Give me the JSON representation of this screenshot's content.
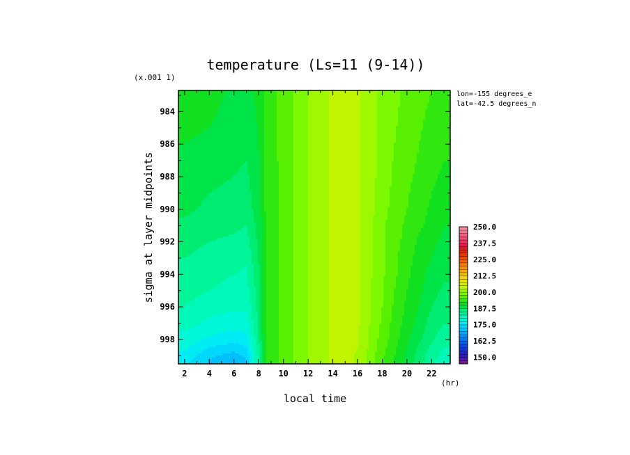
{
  "chart_data": {
    "type": "heatmap",
    "title": "temperature (Ls=11 (9-14))",
    "xlabel": "local time",
    "x_unit": "(hr)",
    "ylabel": "sigma at layer midpoints",
    "y_scale_note": "(x.001 1)",
    "annotations": [
      "lon=-155 degrees_e",
      "lat=-42.5 degrees_n"
    ],
    "xlim": [
      1.5,
      23.5
    ],
    "ylim": [
      999.5,
      982.7
    ],
    "x_ticks": [
      2,
      4,
      6,
      8,
      10,
      12,
      14,
      16,
      18,
      20,
      22
    ],
    "y_ticks": [
      984,
      986,
      988,
      990,
      992,
      994,
      996,
      998
    ],
    "x": [
      1.5,
      2,
      4,
      6,
      7,
      8,
      8.5,
      10,
      11,
      12,
      13,
      14,
      15,
      16,
      17,
      18,
      19,
      20,
      21,
      22,
      23,
      23.5
    ],
    "y": [
      982.7,
      984,
      986,
      988,
      990,
      991,
      992,
      993,
      994,
      995,
      996,
      997,
      998,
      998.5,
      999,
      999.5
    ],
    "z": [
      [
        191.5,
        191.5,
        191.0,
        189.5,
        189.0,
        191.0,
        193.0,
        196.0,
        198.0,
        200.0,
        201.0,
        203.0,
        204.0,
        203.0,
        201.0,
        199.0,
        198.0,
        197.0,
        196.0,
        195.0,
        194.0,
        194.0
      ],
      [
        191.0,
        191.0,
        190.5,
        189.0,
        188.5,
        190.5,
        193.0,
        196.0,
        198.0,
        200.0,
        201.0,
        203.0,
        204.0,
        203.0,
        201.0,
        199.0,
        198.0,
        196.5,
        195.5,
        194.5,
        193.5,
        193.5
      ],
      [
        190.0,
        190.0,
        189.5,
        188.5,
        188.0,
        190.0,
        193.0,
        196.0,
        198.0,
        200.0,
        201.0,
        203.0,
        204.0,
        203.0,
        201.0,
        199.0,
        197.5,
        196.0,
        195.0,
        194.0,
        193.0,
        193.0
      ],
      [
        189.0,
        189.0,
        188.0,
        187.5,
        187.0,
        189.5,
        192.5,
        196.0,
        198.0,
        200.0,
        201.0,
        203.0,
        204.0,
        203.0,
        201.0,
        199.0,
        197.0,
        195.5,
        194.5,
        193.0,
        192.0,
        192.0
      ],
      [
        188.0,
        188.0,
        187.0,
        186.5,
        186.0,
        189.0,
        192.5,
        196.0,
        198.0,
        200.0,
        201.0,
        203.0,
        204.0,
        203.0,
        201.0,
        198.5,
        196.5,
        195.0,
        193.5,
        192.0,
        191.0,
        191.0
      ],
      [
        187.0,
        187.0,
        186.0,
        185.5,
        185.0,
        188.5,
        192.0,
        196.0,
        198.0,
        200.0,
        201.0,
        203.0,
        204.0,
        203.0,
        200.5,
        198.0,
        196.0,
        194.5,
        193.0,
        191.5,
        190.0,
        190.0
      ],
      [
        186.0,
        186.0,
        185.0,
        184.5,
        184.0,
        188.0,
        192.0,
        196.0,
        198.0,
        200.0,
        201.0,
        203.0,
        204.0,
        203.0,
        200.5,
        198.0,
        196.0,
        194.0,
        192.0,
        190.5,
        189.5,
        189.5
      ],
      [
        185.0,
        185.0,
        184.0,
        183.5,
        183.0,
        187.5,
        192.0,
        196.0,
        198.0,
        200.0,
        201.0,
        203.0,
        204.0,
        203.0,
        200.5,
        198.0,
        195.5,
        193.5,
        191.5,
        190.0,
        188.5,
        188.5
      ],
      [
        184.5,
        184.5,
        183.5,
        182.5,
        182.0,
        187.0,
        192.0,
        196.0,
        198.0,
        200.0,
        201.0,
        203.0,
        204.0,
        203.0,
        200.5,
        198.0,
        195.5,
        193.0,
        191.0,
        189.0,
        188.0,
        188.0
      ],
      [
        183.5,
        183.5,
        182.5,
        181.5,
        181.5,
        186.5,
        192.0,
        196.0,
        198.0,
        200.0,
        201.0,
        203.0,
        204.0,
        203.0,
        200.0,
        197.5,
        195.0,
        192.5,
        190.5,
        188.5,
        187.0,
        187.0
      ],
      [
        182.5,
        182.5,
        181.0,
        180.5,
        180.5,
        186.0,
        192.0,
        196.0,
        198.0,
        200.0,
        201.0,
        203.0,
        204.0,
        203.0,
        200.0,
        197.5,
        194.5,
        192.0,
        190.0,
        187.5,
        186.0,
        186.0
      ],
      [
        181.0,
        181.0,
        179.5,
        178.5,
        179.0,
        185.5,
        192.0,
        196.0,
        198.0,
        200.0,
        201.0,
        203.0,
        204.0,
        203.0,
        200.0,
        197.0,
        194.0,
        191.5,
        189.0,
        186.5,
        185.0,
        185.0
      ],
      [
        179.0,
        179.0,
        177.0,
        176.0,
        176.5,
        185.0,
        192.0,
        196.0,
        198.0,
        200.0,
        201.0,
        203.0,
        204.0,
        202.5,
        199.5,
        196.5,
        193.5,
        190.5,
        188.0,
        185.5,
        183.5,
        183.5
      ],
      [
        178.0,
        178.0,
        175.0,
        173.5,
        175.0,
        184.5,
        192.0,
        196.0,
        198.0,
        200.0,
        201.0,
        203.0,
        204.0,
        202.5,
        199.5,
        196.0,
        193.0,
        190.0,
        187.0,
        184.5,
        182.5,
        182.5
      ],
      [
        176.5,
        176.5,
        173.0,
        171.5,
        173.0,
        184.0,
        192.0,
        196.0,
        198.0,
        200.0,
        201.0,
        203.0,
        204.0,
        202.0,
        199.0,
        195.5,
        192.5,
        189.5,
        186.5,
        183.5,
        181.5,
        181.5
      ],
      [
        175.5,
        175.5,
        172.0,
        170.5,
        172.0,
        183.5,
        192.0,
        196.0,
        198.0,
        200.0,
        201.0,
        203.0,
        204.0,
        202.0,
        199.0,
        195.5,
        192.0,
        189.0,
        186.0,
        183.0,
        181.0,
        181.0
      ]
    ],
    "colorbar": {
      "levels": [
        145.0,
        147.5,
        150.0,
        152.5,
        155.0,
        157.5,
        160.0,
        162.5,
        165.0,
        167.5,
        170.0,
        172.5,
        175.0,
        177.5,
        180.0,
        182.5,
        185.0,
        187.5,
        190.0,
        192.5,
        195.0,
        197.5,
        200.0,
        202.5,
        205.0,
        207.5,
        210.0,
        212.5,
        215.0,
        217.5,
        220.0,
        222.5,
        225.0,
        227.5,
        230.0,
        232.5,
        235.0,
        237.5,
        240.0,
        242.5,
        245.0,
        247.5,
        250.0
      ],
      "colors": [
        "#7a1a9a",
        "#4a1aa8",
        "#2a1ab8",
        "#1a28c8",
        "#1038d8",
        "#0a48e8",
        "#0060f0",
        "#0078f4",
        "#0090f8",
        "#00a8fa",
        "#00c0fc",
        "#00d8fc",
        "#00ecf4",
        "#00f8d8",
        "#00f8b8",
        "#00f498",
        "#00ec70",
        "#00e448",
        "#10e020",
        "#30e810",
        "#58f000",
        "#7cf800",
        "#a0f800",
        "#c0f400",
        "#d8ec00",
        "#ece400",
        "#f4d400",
        "#f8c000",
        "#f8a800",
        "#f89000",
        "#f87800",
        "#f86000",
        "#f04800",
        "#e83800",
        "#e02800",
        "#e01830",
        "#e81848",
        "#f03060",
        "#f04870",
        "#f06080",
        "#f07890",
        "#f090a0"
      ],
      "labels": [
        "250.0",
        "237.5",
        "225.0",
        "212.5",
        "200.0",
        "187.5",
        "175.0",
        "162.5",
        "150.0"
      ]
    }
  }
}
